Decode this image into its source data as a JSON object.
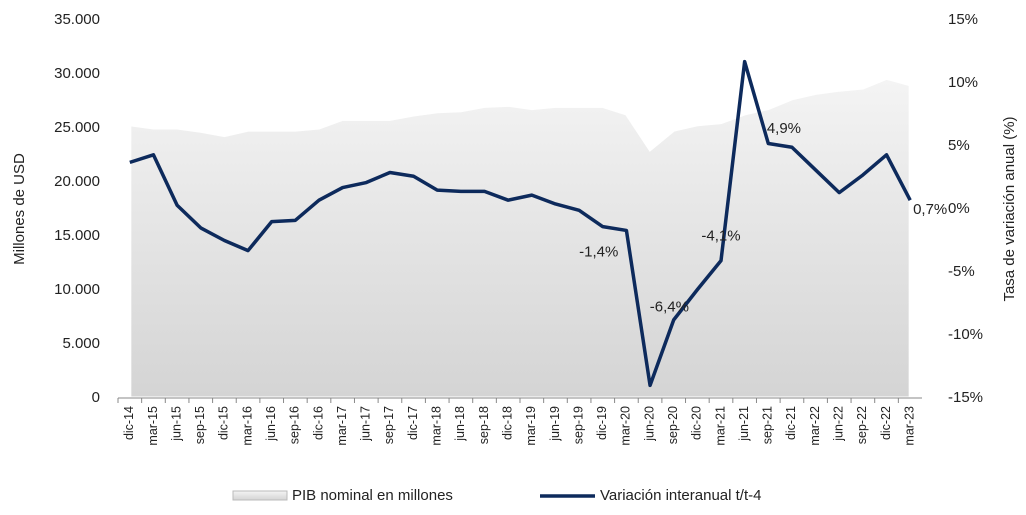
{
  "chart_data": {
    "type": "area_line",
    "y_label": "Millones de USD",
    "y2_label": "Tasa de variación anual (%)",
    "categories": [
      "dic-14",
      "mar-15",
      "jun-15",
      "sep-15",
      "dic-15",
      "mar-16",
      "jun-16",
      "sep-16",
      "dic-16",
      "mar-17",
      "jun-17",
      "sep-17",
      "dic-17",
      "mar-18",
      "jun-18",
      "sep-18",
      "dic-18",
      "mar-19",
      "jun-19",
      "sep-19",
      "dic-19",
      "mar-20",
      "jun-20",
      "sep-20",
      "dic-20",
      "mar-21",
      "jun-21",
      "sep-21",
      "dic-21",
      "mar-22",
      "jun-22",
      "sep-22",
      "dic-22",
      "mar-23"
    ],
    "series": [
      {
        "name": "PIB nominal en millones",
        "color": "#e3e3e3",
        "axis": "y",
        "values": [
          25300,
          25000,
          25000,
          24700,
          24300,
          24800,
          24800,
          24800,
          25000,
          25800,
          25800,
          25800,
          26200,
          26500,
          26600,
          27000,
          27100,
          26800,
          27000,
          27000,
          27000,
          26300,
          23000,
          24800,
          25300,
          25500,
          26300,
          26800,
          27700,
          28200,
          28500,
          28700,
          29600,
          29000
        ]
      },
      {
        "name": "Variación interanual t/t-4",
        "color": "#0d2a5c",
        "axis": "y2",
        "values": [
          3.7,
          4.3,
          0.3,
          -1.5,
          -2.5,
          -3.3,
          -1.0,
          -0.9,
          0.7,
          1.7,
          2.1,
          2.9,
          2.6,
          1.5,
          1.4,
          1.4,
          0.7,
          1.1,
          0.4,
          -0.1,
          -1.4,
          -1.7,
          -14.0,
          -8.8,
          -6.4,
          -4.1,
          11.7,
          5.2,
          4.9,
          3.1,
          1.3,
          2.7,
          4.3,
          0.7
        ],
        "value_labels": [
          null,
          null,
          null,
          null,
          null,
          null,
          null,
          null,
          null,
          null,
          null,
          null,
          null,
          null,
          null,
          null,
          null,
          null,
          null,
          null,
          "-1,4%",
          null,
          null,
          null,
          "-6,4%",
          "-4,1%",
          null,
          null,
          "4,9%",
          null,
          null,
          null,
          null,
          "0,7%"
        ]
      }
    ],
    "ylim": [
      0,
      35000
    ],
    "yticks": [
      {
        "value": 0,
        "label": "0"
      },
      {
        "value": 5000,
        "label": "5.000"
      },
      {
        "value": 10000,
        "label": "10.000"
      },
      {
        "value": 15000,
        "label": "15.000"
      },
      {
        "value": 20000,
        "label": "20.000"
      },
      {
        "value": 25000,
        "label": "25.000"
      },
      {
        "value": 30000,
        "label": "30.000"
      },
      {
        "value": 35000,
        "label": "35.000"
      }
    ],
    "y2lim": [
      -15,
      15
    ],
    "y2ticks": [
      {
        "value": -15,
        "label": "-15%"
      },
      {
        "value": -10,
        "label": "-10%"
      },
      {
        "value": -5,
        "label": "-5%"
      },
      {
        "value": 0,
        "label": "0%"
      },
      {
        "value": 5,
        "label": "5%"
      },
      {
        "value": 10,
        "label": "10%"
      },
      {
        "value": 15,
        "label": "15%"
      }
    ],
    "legend": "bottom"
  }
}
